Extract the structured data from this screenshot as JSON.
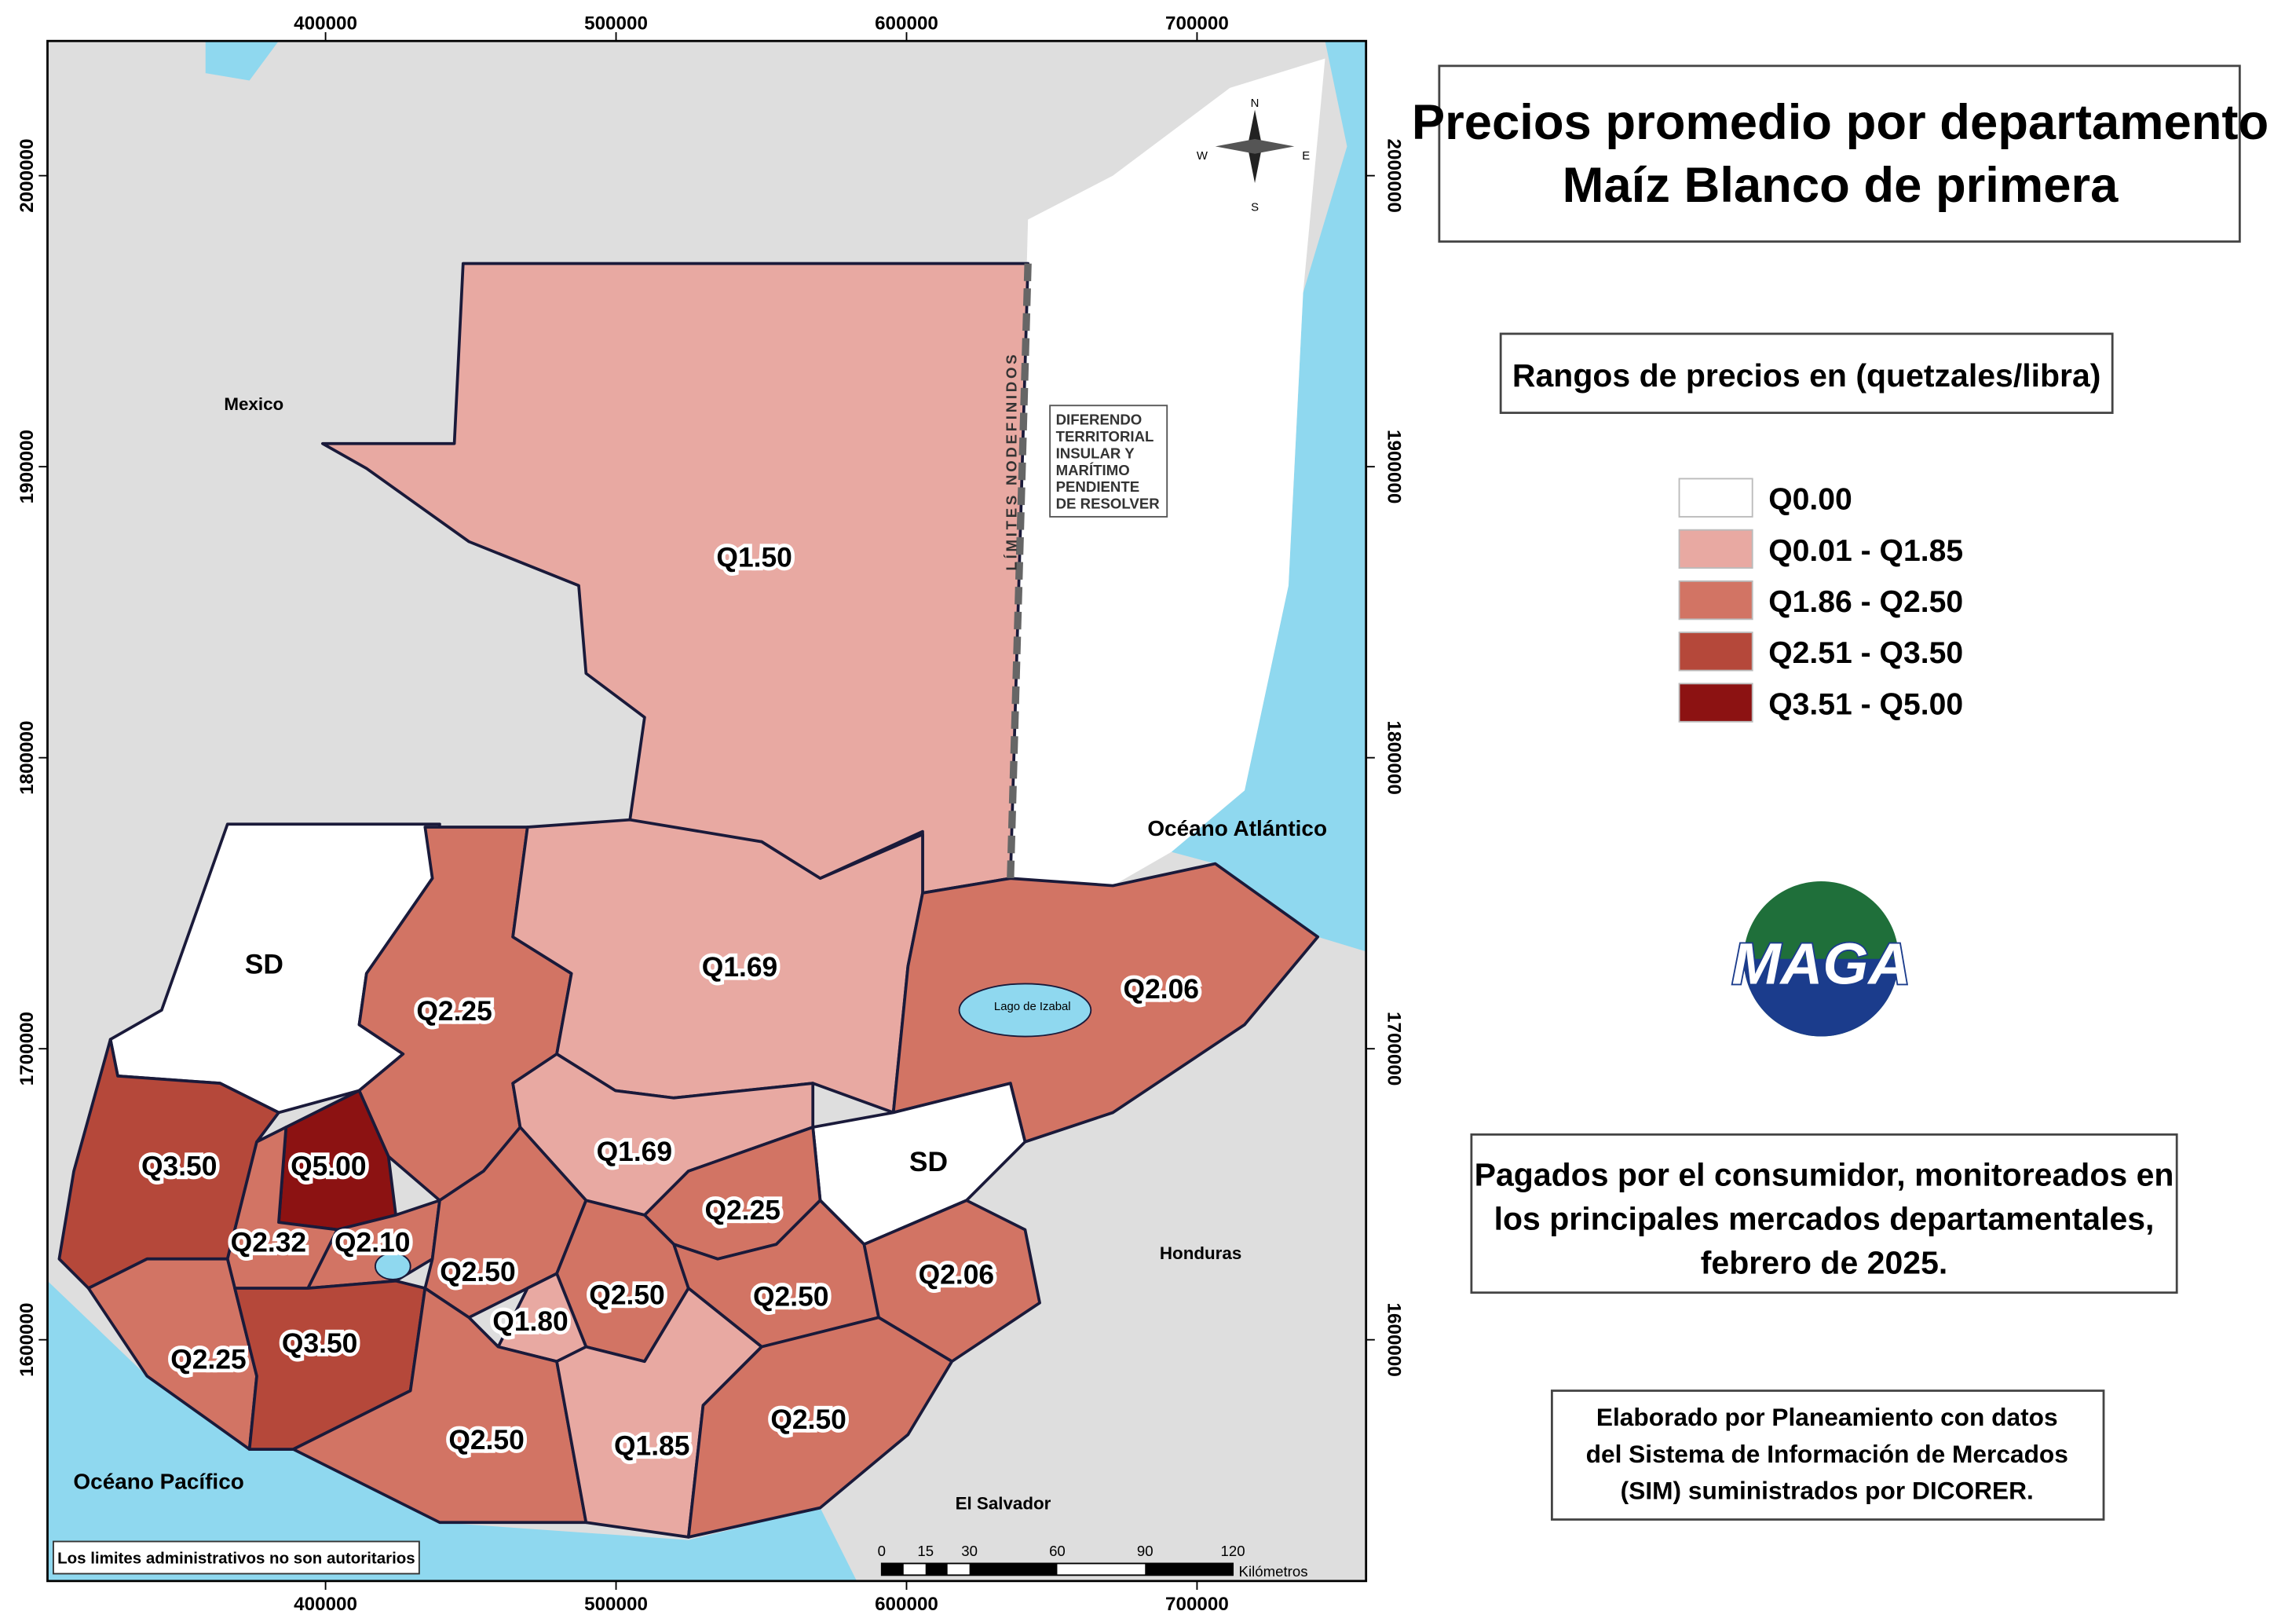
{
  "title": [
    "Precios promedio por departamento",
    "Maíz Blanco de primera"
  ],
  "legend": {
    "title": "Rangos de precios en (quetzales/libra)",
    "items": [
      {
        "label": "Q0.00",
        "color": "#ffffff"
      },
      {
        "label": "Q0.01 - Q1.85",
        "color": "#e8a9a2"
      },
      {
        "label": "Q1.86 - Q2.50",
        "color": "#d27464"
      },
      {
        "label": "Q2.51 - Q3.50",
        "color": "#b5483a"
      },
      {
        "label": "Q3.51 - Q5.00",
        "color": "#8c1212"
      }
    ]
  },
  "departments": [
    "Q1.50",
    "SD",
    "Q2.25",
    "Q1.69",
    "Q2.06",
    "Q1.69",
    "SD",
    "Q3.50",
    "Q5.00",
    "Q2.32",
    "Q2.10",
    "Q2.50",
    "Q2.25",
    "Q2.50",
    "Q1.80",
    "Q2.50",
    "Q2.06",
    "Q2.25",
    "Q3.50",
    "Q2.50",
    "Q1.85",
    "Q2.50"
  ],
  "places": [
    "Mexico",
    "Océano Atlántico",
    "Honduras",
    "El Salvador",
    "Océano Pacífico",
    "Lago de Izabal"
  ],
  "boundary_note": "LÍMITES NODEFINIDOS",
  "dispute_note": [
    "DIFERENDO",
    "TERRITORIAL",
    "INSULAR Y",
    "MARÍTIMO",
    "PENDIENTE",
    "DE RESOLVER"
  ],
  "disclaimer": "Los limites administrativos no son autoritarios",
  "x_ticks": [
    400000,
    500000,
    600000,
    700000
  ],
  "y_ticks": [
    2000000,
    1900000,
    1800000,
    1700000,
    1600000
  ],
  "compass": [
    "N",
    "S",
    "E",
    "W"
  ],
  "scale": {
    "ticks": [
      "0",
      "15",
      "30",
      "60",
      "90",
      "120"
    ],
    "unit": "Kilómetros"
  },
  "logo": "MAGA",
  "description": [
    "Pagados por el consumidor, monitoreados en",
    "los principales mercados departamentales,",
    "febrero de 2025."
  ],
  "credits": [
    "Elaborado por Planeamiento con datos",
    "del Sistema de Información de Mercados",
    "(SIM) suministrados por DICORER."
  ]
}
